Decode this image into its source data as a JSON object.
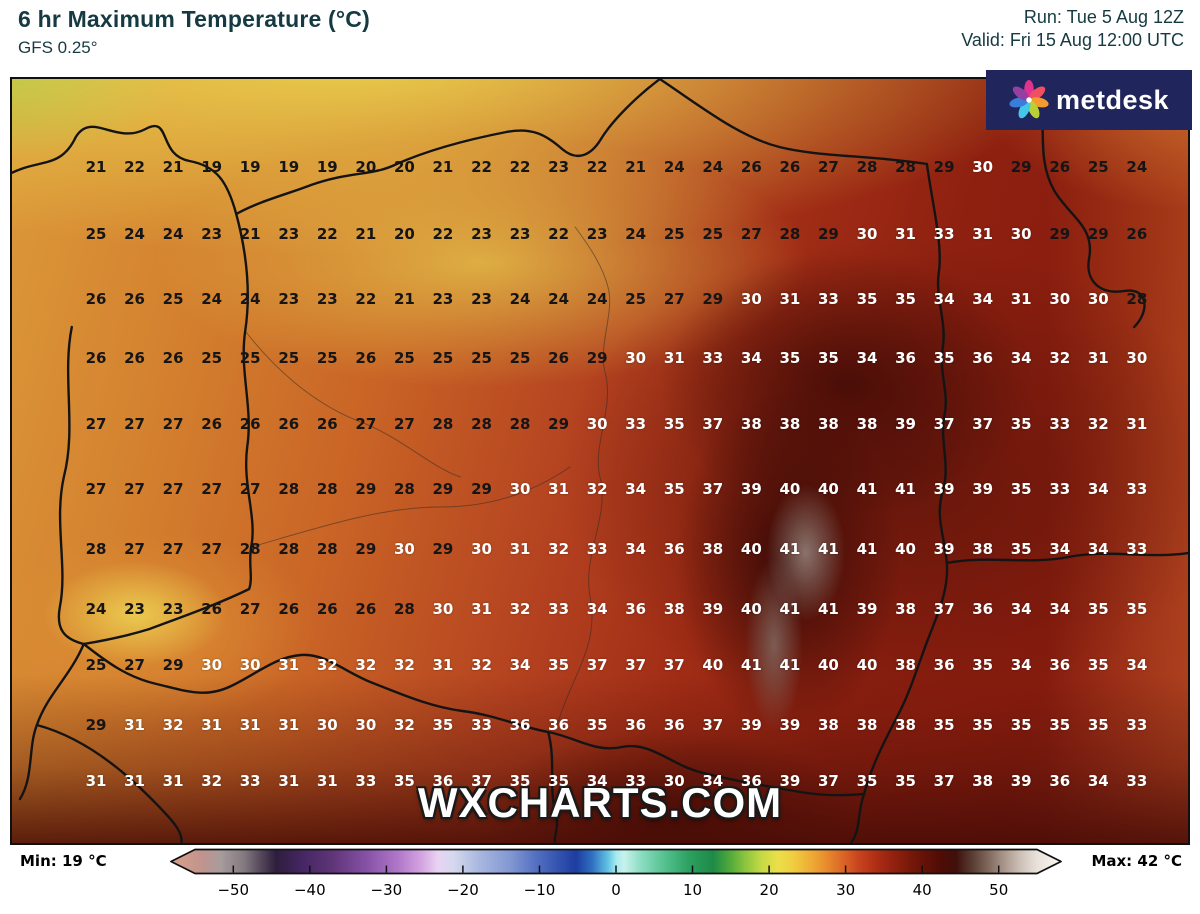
{
  "header": {
    "title": "6 hr Maximum Temperature (°C)",
    "subtitle": "GFS 0.25°",
    "run_line": "Run: Tue 5 Aug 12Z",
    "valid_line": "Valid: Fri 15 Aug 12:00 UTC"
  },
  "logo": {
    "text": "metdesk",
    "background": "#20255c",
    "petal_colors": [
      "#e0328e",
      "#ef4f63",
      "#f59a31",
      "#b9cf35",
      "#45c8e8",
      "#3b7ddb",
      "#9340a0"
    ]
  },
  "watermark": "WXCHARTS.COM",
  "scale": {
    "min_label": "Min: 19 °C",
    "max_label": "Max: 42 °C",
    "ticks": [
      {
        "v": -50,
        "label": "−50"
      },
      {
        "v": -40,
        "label": "−40"
      },
      {
        "v": -30,
        "label": "−30"
      },
      {
        "v": -20,
        "label": "−20"
      },
      {
        "v": -10,
        "label": "−10"
      },
      {
        "v": 0,
        "label": "0"
      },
      {
        "v": 10,
        "label": "10"
      },
      {
        "v": 20,
        "label": "20"
      },
      {
        "v": 30,
        "label": "30"
      },
      {
        "v": 40,
        "label": "40"
      },
      {
        "v": 50,
        "label": "50"
      }
    ],
    "domain": [
      -55,
      55
    ],
    "gradient": [
      [
        0,
        "#d9a188"
      ],
      [
        3.6,
        "#c0938e"
      ],
      [
        5.5,
        "#a89c9c"
      ],
      [
        8.2,
        "#837a80"
      ],
      [
        10,
        "#574a5c"
      ],
      [
        11.8,
        "#2e1e3c"
      ],
      [
        14.5,
        "#432560"
      ],
      [
        18.2,
        "#5f3579"
      ],
      [
        21.8,
        "#8450a4"
      ],
      [
        25.5,
        "#b077c8"
      ],
      [
        28.2,
        "#d4a5e2"
      ],
      [
        30,
        "#e9d4f2"
      ],
      [
        31.8,
        "#d4d8ee"
      ],
      [
        34.5,
        "#aab8e0"
      ],
      [
        38.2,
        "#8197d2"
      ],
      [
        40.9,
        "#5571c2"
      ],
      [
        43.6,
        "#3352af"
      ],
      [
        45.5,
        "#1d3da0"
      ],
      [
        47.3,
        "#2f6fc0"
      ],
      [
        49.1,
        "#62c2e4"
      ],
      [
        50,
        "#a5e9f0"
      ],
      [
        50.9,
        "#c8f2ec"
      ],
      [
        52.7,
        "#8edec4"
      ],
      [
        55.5,
        "#55c08f"
      ],
      [
        58.2,
        "#2da05f"
      ],
      [
        60.9,
        "#1e8a47"
      ],
      [
        62.7,
        "#4da83c"
      ],
      [
        64.5,
        "#8cc43e"
      ],
      [
        66.4,
        "#c6da44"
      ],
      [
        68.2,
        "#ecdf4a"
      ],
      [
        70,
        "#f0cc40"
      ],
      [
        71.8,
        "#eeae36"
      ],
      [
        73.6,
        "#e88c2e"
      ],
      [
        75.5,
        "#db6526"
      ],
      [
        77.3,
        "#c8431e"
      ],
      [
        79.1,
        "#b02f16"
      ],
      [
        80.9,
        "#96230f"
      ],
      [
        82.7,
        "#7d1a0a"
      ],
      [
        84.5,
        "#661207"
      ],
      [
        86.4,
        "#500c05"
      ],
      [
        88.2,
        "#400f0c"
      ],
      [
        90,
        "#583c32"
      ],
      [
        91.8,
        "#7f675c"
      ],
      [
        93.6,
        "#a9968a"
      ],
      [
        95.5,
        "#cec2b8"
      ],
      [
        97.3,
        "#e9e2da"
      ],
      [
        100,
        "#faf7f2"
      ]
    ]
  },
  "map_grid": {
    "type": "heatmap",
    "unit": "°C",
    "white_text_threshold": 30,
    "columns": 28,
    "values": [
      [
        21,
        22,
        21,
        19,
        19,
        19,
        19,
        20,
        20,
        21,
        22,
        22,
        23,
        22,
        21,
        24,
        24,
        26,
        26,
        27,
        28,
        28,
        29,
        30,
        29,
        26,
        25,
        24
      ],
      [
        25,
        24,
        24,
        23,
        21,
        23,
        22,
        21,
        20,
        22,
        23,
        23,
        22,
        23,
        24,
        25,
        25,
        27,
        28,
        29,
        30,
        31,
        33,
        31,
        30,
        29,
        29,
        26
      ],
      [
        26,
        26,
        25,
        24,
        24,
        23,
        23,
        22,
        21,
        23,
        23,
        24,
        24,
        24,
        25,
        27,
        29,
        30,
        31,
        33,
        35,
        35,
        34,
        34,
        31,
        30,
        30,
        28
      ],
      [
        26,
        26,
        26,
        25,
        25,
        25,
        25,
        26,
        25,
        25,
        25,
        25,
        26,
        29,
        30,
        31,
        33,
        34,
        35,
        35,
        34,
        36,
        35,
        36,
        34,
        32,
        31,
        30
      ],
      [
        27,
        27,
        27,
        26,
        26,
        26,
        26,
        27,
        27,
        28,
        28,
        28,
        29,
        30,
        33,
        35,
        37,
        38,
        38,
        38,
        38,
        39,
        37,
        37,
        35,
        33,
        32,
        31
      ],
      [
        27,
        27,
        27,
        27,
        27,
        28,
        28,
        29,
        28,
        29,
        29,
        30,
        31,
        32,
        34,
        35,
        37,
        39,
        40,
        40,
        41,
        41,
        39,
        39,
        35,
        33,
        34,
        33
      ],
      [
        28,
        27,
        27,
        27,
        28,
        28,
        28,
        29,
        30,
        29,
        30,
        31,
        32,
        33,
        34,
        36,
        38,
        40,
        41,
        41,
        41,
        40,
        39,
        38,
        35,
        34,
        34,
        33
      ],
      [
        24,
        23,
        23,
        26,
        27,
        26,
        26,
        26,
        28,
        30,
        31,
        32,
        33,
        34,
        36,
        38,
        39,
        40,
        41,
        41,
        39,
        38,
        37,
        36,
        34,
        34,
        35,
        35
      ],
      [
        25,
        27,
        29,
        30,
        30,
        31,
        32,
        32,
        32,
        31,
        32,
        34,
        35,
        37,
        37,
        37,
        40,
        41,
        41,
        40,
        40,
        38,
        36,
        35,
        34,
        36,
        35,
        34
      ],
      [
        29,
        31,
        32,
        31,
        31,
        31,
        30,
        30,
        32,
        35,
        33,
        36,
        36,
        35,
        36,
        36,
        37,
        39,
        39,
        38,
        38,
        38,
        35,
        35,
        35,
        35,
        35,
        33
      ],
      [
        31,
        31,
        31,
        32,
        33,
        31,
        31,
        33,
        35,
        36,
        37,
        35,
        35,
        34,
        33,
        30,
        34,
        36,
        39,
        37,
        35,
        35,
        37,
        38,
        39,
        36,
        34,
        33
      ]
    ]
  }
}
